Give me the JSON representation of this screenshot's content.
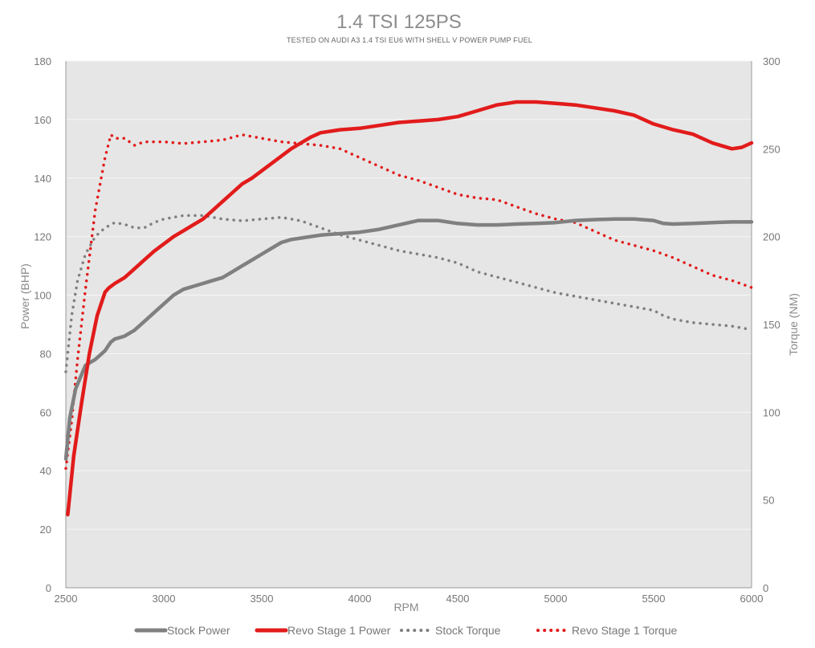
{
  "chart_data": {
    "type": "line",
    "title": "1.4 TSI 125PS",
    "subtitle": "TESTED ON AUDI A3 1.4 TSI EU6 WITH SHELL V POWER PUMP FUEL",
    "xlabel": "RPM",
    "ylabel": "Power (BHP)",
    "y2label": "Torque (NM)",
    "xlim": [
      2500,
      6000
    ],
    "ylim": [
      0,
      180
    ],
    "y2lim": [
      0,
      300
    ],
    "xticks": [
      "2500",
      "3000",
      "3500",
      "4000",
      "4500",
      "5000",
      "5500",
      "6000"
    ],
    "yticks": [
      "0",
      "20",
      "40",
      "60",
      "80",
      "100",
      "120",
      "140",
      "160",
      "180"
    ],
    "y2ticks": [
      "0",
      "50",
      "100",
      "150",
      "200",
      "250",
      "300"
    ],
    "grid": true,
    "legend_position": "bottom",
    "background": "#e6e6e6",
    "series": [
      {
        "name": "Stock Power",
        "axis": "left",
        "style": "solid",
        "color": "#808080",
        "points": [
          [
            2500,
            44
          ],
          [
            2520,
            58
          ],
          [
            2550,
            68
          ],
          [
            2600,
            76
          ],
          [
            2650,
            78
          ],
          [
            2700,
            81
          ],
          [
            2730,
            84
          ],
          [
            2750,
            85
          ],
          [
            2800,
            86
          ],
          [
            2850,
            88
          ],
          [
            2900,
            91
          ],
          [
            2950,
            94
          ],
          [
            3000,
            97
          ],
          [
            3050,
            100
          ],
          [
            3100,
            102
          ],
          [
            3150,
            103
          ],
          [
            3200,
            104
          ],
          [
            3250,
            105
          ],
          [
            3300,
            106
          ],
          [
            3350,
            108
          ],
          [
            3400,
            110
          ],
          [
            3450,
            112
          ],
          [
            3500,
            114
          ],
          [
            3550,
            116
          ],
          [
            3600,
            118
          ],
          [
            3650,
            119
          ],
          [
            3700,
            119.5
          ],
          [
            3800,
            120.5
          ],
          [
            3900,
            121
          ],
          [
            4000,
            121.5
          ],
          [
            4100,
            122.5
          ],
          [
            4200,
            124
          ],
          [
            4300,
            125.5
          ],
          [
            4400,
            125.5
          ],
          [
            4500,
            124.5
          ],
          [
            4600,
            124
          ],
          [
            4700,
            124
          ],
          [
            4800,
            124.3
          ],
          [
            4900,
            124.5
          ],
          [
            5000,
            124.8
          ],
          [
            5100,
            125.5
          ],
          [
            5200,
            125.8
          ],
          [
            5300,
            126
          ],
          [
            5400,
            126
          ],
          [
            5500,
            125.5
          ],
          [
            5550,
            124.5
          ],
          [
            5600,
            124.3
          ],
          [
            5700,
            124.5
          ],
          [
            5800,
            124.8
          ],
          [
            5900,
            125
          ],
          [
            6000,
            125
          ]
        ]
      },
      {
        "name": "Revo Stage 1 Power",
        "axis": "left",
        "style": "solid",
        "color": "#e21b1b",
        "points": [
          [
            2510,
            25
          ],
          [
            2540,
            45
          ],
          [
            2580,
            63
          ],
          [
            2620,
            80
          ],
          [
            2660,
            93
          ],
          [
            2700,
            101
          ],
          [
            2720,
            102.5
          ],
          [
            2750,
            104
          ],
          [
            2800,
            106
          ],
          [
            2850,
            109
          ],
          [
            2900,
            112
          ],
          [
            2950,
            115
          ],
          [
            3000,
            117.5
          ],
          [
            3050,
            120
          ],
          [
            3100,
            122
          ],
          [
            3150,
            124
          ],
          [
            3200,
            126
          ],
          [
            3250,
            129
          ],
          [
            3300,
            132
          ],
          [
            3350,
            135
          ],
          [
            3400,
            138
          ],
          [
            3450,
            140
          ],
          [
            3500,
            142.5
          ],
          [
            3550,
            145
          ],
          [
            3600,
            147.5
          ],
          [
            3650,
            150
          ],
          [
            3700,
            152
          ],
          [
            3750,
            154
          ],
          [
            3800,
            155.5
          ],
          [
            3900,
            156.5
          ],
          [
            4000,
            157
          ],
          [
            4100,
            158
          ],
          [
            4200,
            159
          ],
          [
            4300,
            159.5
          ],
          [
            4400,
            160
          ],
          [
            4500,
            161
          ],
          [
            4600,
            163
          ],
          [
            4700,
            165
          ],
          [
            4800,
            166
          ],
          [
            4900,
            166
          ],
          [
            5000,
            165.5
          ],
          [
            5100,
            165
          ],
          [
            5200,
            164
          ],
          [
            5300,
            163
          ],
          [
            5400,
            161.5
          ],
          [
            5450,
            160
          ],
          [
            5500,
            158.5
          ],
          [
            5550,
            157.5
          ],
          [
            5600,
            156.5
          ],
          [
            5700,
            155
          ],
          [
            5800,
            152
          ],
          [
            5850,
            151
          ],
          [
            5900,
            150
          ],
          [
            5950,
            150.5
          ],
          [
            6000,
            152
          ]
        ]
      },
      {
        "name": "Stock Torque",
        "axis": "right",
        "style": "dotted",
        "color": "#808080",
        "points": [
          [
            2500,
            123
          ],
          [
            2530,
            155
          ],
          [
            2560,
            175
          ],
          [
            2600,
            190
          ],
          [
            2650,
            200
          ],
          [
            2700,
            205
          ],
          [
            2750,
            208
          ],
          [
            2800,
            207
          ],
          [
            2850,
            205
          ],
          [
            2900,
            205
          ],
          [
            2950,
            208
          ],
          [
            3000,
            210
          ],
          [
            3050,
            211
          ],
          [
            3100,
            212
          ],
          [
            3150,
            212
          ],
          [
            3200,
            212
          ],
          [
            3300,
            210
          ],
          [
            3400,
            209
          ],
          [
            3500,
            210
          ],
          [
            3600,
            211
          ],
          [
            3700,
            209
          ],
          [
            3800,
            205
          ],
          [
            3900,
            201
          ],
          [
            4000,
            198
          ],
          [
            4100,
            195
          ],
          [
            4200,
            192
          ],
          [
            4300,
            190
          ],
          [
            4400,
            188
          ],
          [
            4500,
            185
          ],
          [
            4600,
            180
          ],
          [
            4700,
            177
          ],
          [
            4800,
            174
          ],
          [
            4900,
            171
          ],
          [
            5000,
            168
          ],
          [
            5100,
            166
          ],
          [
            5200,
            164
          ],
          [
            5300,
            162
          ],
          [
            5400,
            160
          ],
          [
            5500,
            158
          ],
          [
            5550,
            155
          ],
          [
            5600,
            153
          ],
          [
            5700,
            151
          ],
          [
            5800,
            150
          ],
          [
            5900,
            149
          ],
          [
            6000,
            147
          ]
        ]
      },
      {
        "name": "Revo Stage 1 Torque",
        "axis": "right",
        "style": "dotted",
        "color": "#e21b1b",
        "points": [
          [
            2500,
            68
          ],
          [
            2530,
            95
          ],
          [
            2560,
            130
          ],
          [
            2600,
            170
          ],
          [
            2650,
            215
          ],
          [
            2700,
            245
          ],
          [
            2730,
            258
          ],
          [
            2750,
            256
          ],
          [
            2800,
            256
          ],
          [
            2850,
            252
          ],
          [
            2900,
            254
          ],
          [
            3000,
            254
          ],
          [
            3100,
            253
          ],
          [
            3200,
            254
          ],
          [
            3300,
            255
          ],
          [
            3400,
            258
          ],
          [
            3500,
            256
          ],
          [
            3600,
            254
          ],
          [
            3700,
            253
          ],
          [
            3800,
            252
          ],
          [
            3900,
            250
          ],
          [
            4000,
            245
          ],
          [
            4100,
            240
          ],
          [
            4200,
            235
          ],
          [
            4300,
            232
          ],
          [
            4400,
            228
          ],
          [
            4500,
            224
          ],
          [
            4600,
            222
          ],
          [
            4700,
            221
          ],
          [
            4800,
            217
          ],
          [
            4900,
            213
          ],
          [
            5000,
            210
          ],
          [
            5100,
            208
          ],
          [
            5200,
            203
          ],
          [
            5300,
            198
          ],
          [
            5400,
            195
          ],
          [
            5500,
            192
          ],
          [
            5600,
            188
          ],
          [
            5700,
            183
          ],
          [
            5800,
            178
          ],
          [
            5900,
            175
          ],
          [
            6000,
            171
          ]
        ]
      }
    ]
  }
}
